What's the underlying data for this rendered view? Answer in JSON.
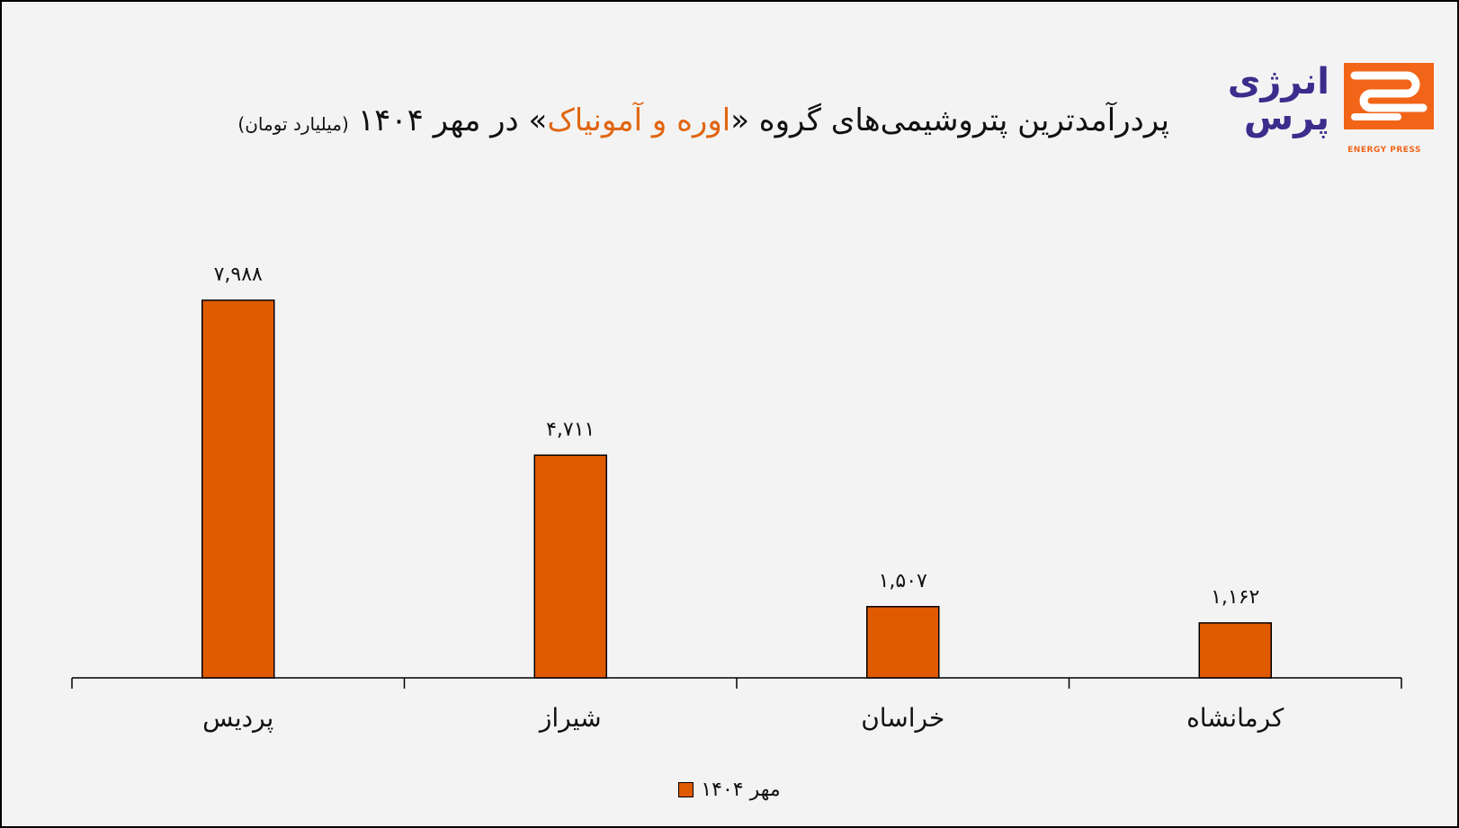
{
  "title": {
    "prefix": "پردرآمدترین پتروشیمی‌های گروه «",
    "highlight": "اوره و آمونیاک",
    "suffix": "» در مهر ۱۴۰۴",
    "unit": "(میلیارد تومان)"
  },
  "logo": {
    "fa_line1": "انرژی",
    "fa_line2": "پرس",
    "en": "ENERGY PRESS"
  },
  "colors": {
    "bar": "#e05a00",
    "accent": "#e06510",
    "background": "#f3f3f3"
  },
  "chart_data": {
    "type": "bar",
    "categories": [
      "پردیس",
      "شیراز",
      "خراسان",
      "کرمانشاه"
    ],
    "series": [
      {
        "name": "مهر ۱۴۰۴",
        "values": [
          7988,
          4711,
          1507,
          1162
        ],
        "labels": [
          "۷,۹۸۸",
          "۴,۷۱۱",
          "۱,۵۰۷",
          "۱,۱۶۲"
        ]
      }
    ],
    "ylim": [
      0,
      10000
    ],
    "grid": false,
    "legend": "bottom-center"
  },
  "legend": {
    "label": "مهر ۱۴۰۴"
  }
}
